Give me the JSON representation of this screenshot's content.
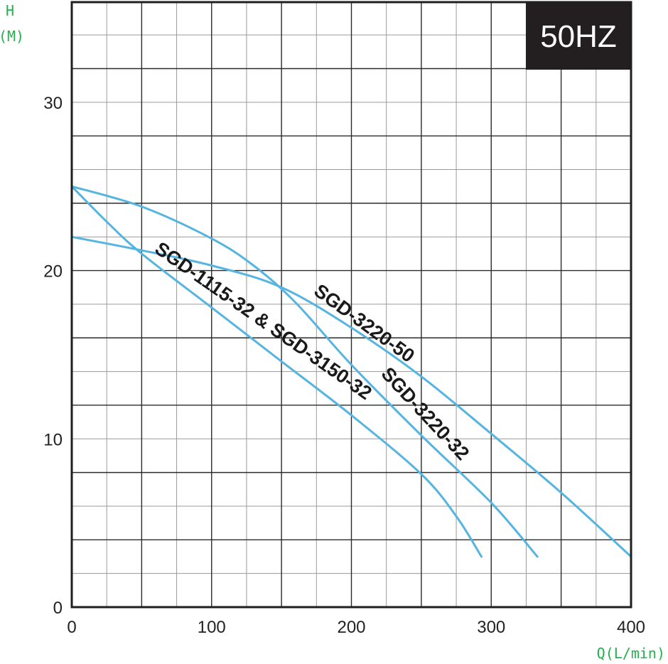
{
  "chart_data": {
    "type": "line",
    "badge": "50HZ",
    "ylabel_letter": "H",
    "ylabel_unit": "(M)",
    "xlabel": "Q(L/min)",
    "xlim": [
      0,
      400
    ],
    "ylim": [
      0,
      36
    ],
    "x_ticks": [
      0,
      100,
      200,
      300,
      400
    ],
    "y_ticks": [
      0,
      10,
      20,
      30
    ],
    "grid": true,
    "colors": {
      "curve": "#55b4e0",
      "axis_text": "#22b14c",
      "badge_bg": "#231f20",
      "grid_major": "#2b2b2b",
      "grid_minor": "#9a9a9a"
    },
    "series": [
      {
        "name": "SGD-1115-32 & SGD-3150-32",
        "points": [
          [
            0,
            25
          ],
          [
            25,
            22.9
          ],
          [
            50,
            21
          ],
          [
            100,
            17.8
          ],
          [
            150,
            14.6
          ],
          [
            200,
            11.4
          ],
          [
            250,
            7.9
          ],
          [
            275,
            5.4
          ],
          [
            293,
            3
          ]
        ]
      },
      {
        "name": "SGD-3220-32",
        "points": [
          [
            0,
            25
          ],
          [
            50,
            23.8
          ],
          [
            100,
            21.9
          ],
          [
            130,
            20.3
          ],
          [
            160,
            18.1
          ],
          [
            200,
            14.4
          ],
          [
            250,
            10.2
          ],
          [
            300,
            6.2
          ],
          [
            333,
            3
          ]
        ]
      },
      {
        "name": "SGD-3220-50",
        "points": [
          [
            0,
            22
          ],
          [
            50,
            21.2
          ],
          [
            100,
            20.3
          ],
          [
            150,
            19
          ],
          [
            200,
            16.6
          ],
          [
            250,
            13.7
          ],
          [
            300,
            10.3
          ],
          [
            350,
            6.8
          ],
          [
            400,
            3
          ]
        ]
      }
    ]
  }
}
